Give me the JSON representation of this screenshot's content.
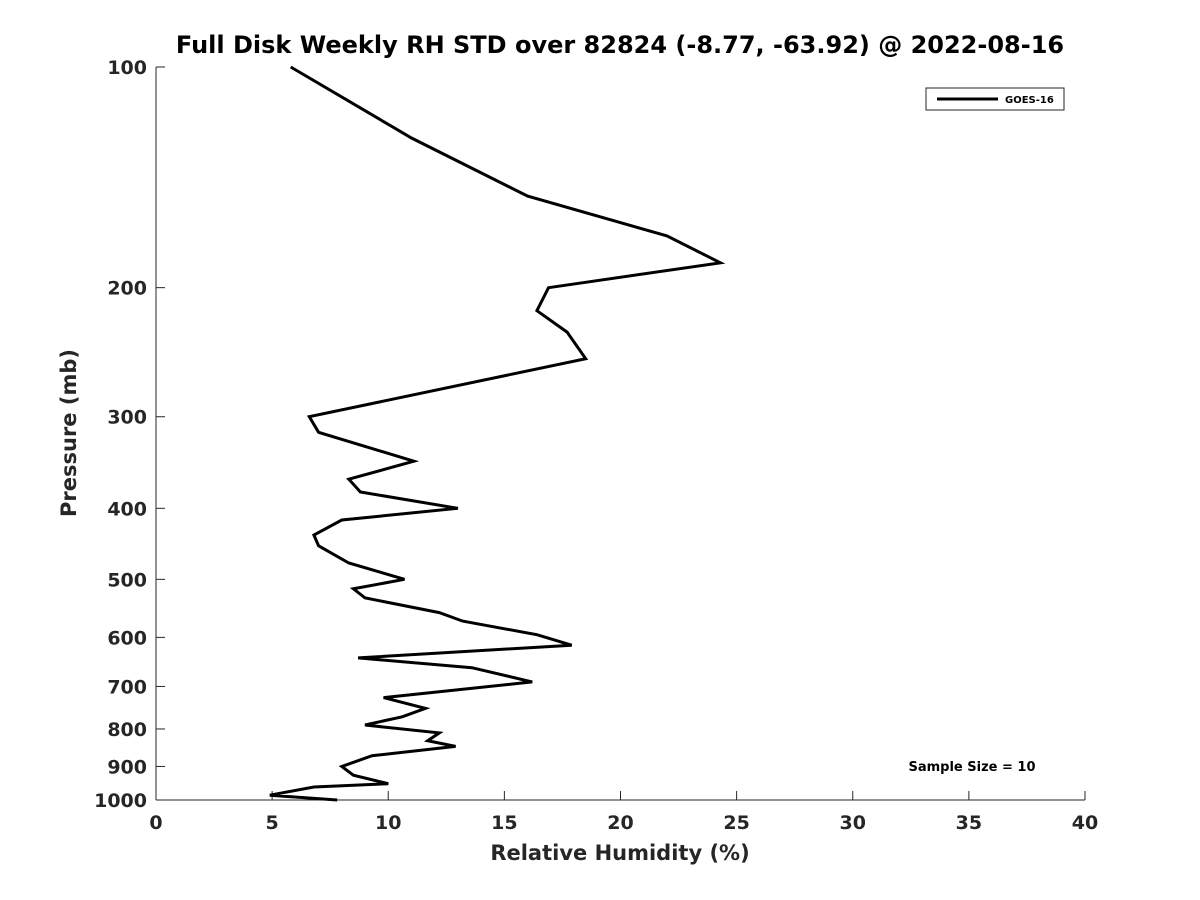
{
  "chart_data": {
    "type": "line",
    "title": "Full Disk Weekly RH STD over 82824 (-8.77, -63.92) @ 2022-08-16",
    "xlabel": "Relative Humidity (%)",
    "ylabel": "Pressure (mb)",
    "xlim": [
      0,
      40
    ],
    "ylim": [
      100,
      1000
    ],
    "y_scale": "log",
    "y_reversed": true,
    "grid": false,
    "legend_position": "top-right",
    "x_ticks": [
      0,
      5,
      10,
      15,
      20,
      25,
      30,
      35,
      40
    ],
    "y_ticks": [
      100,
      200,
      300,
      400,
      500,
      600,
      700,
      800,
      900,
      1000
    ],
    "annotation": "Sample Size = 10",
    "series": [
      {
        "name": "GOES-16",
        "color": "#000000",
        "x": [
          5.8,
          11.0,
          16.0,
          22.0,
          24.3,
          16.9,
          16.4,
          17.7,
          18.5,
          6.6,
          7.0,
          11.1,
          8.3,
          8.8,
          13.0,
          8.0,
          6.8,
          7.0,
          8.3,
          10.7,
          8.5,
          9.0,
          12.2,
          13.2,
          16.4,
          17.9,
          8.7,
          13.6,
          16.2,
          9.8,
          11.6,
          10.6,
          9.0,
          12.2,
          11.7,
          12.9,
          9.3,
          8.0,
          8.5,
          10.0,
          6.8,
          4.9,
          7.8
        ],
        "y": [
          100,
          125,
          150,
          170,
          185,
          200,
          215,
          230,
          250,
          300,
          315,
          345,
          365,
          380,
          400,
          415,
          435,
          450,
          475,
          500,
          515,
          530,
          555,
          570,
          595,
          615,
          640,
          660,
          690,
          725,
          750,
          770,
          790,
          810,
          830,
          845,
          870,
          900,
          925,
          950,
          960,
          985,
          1000
        ]
      }
    ]
  }
}
